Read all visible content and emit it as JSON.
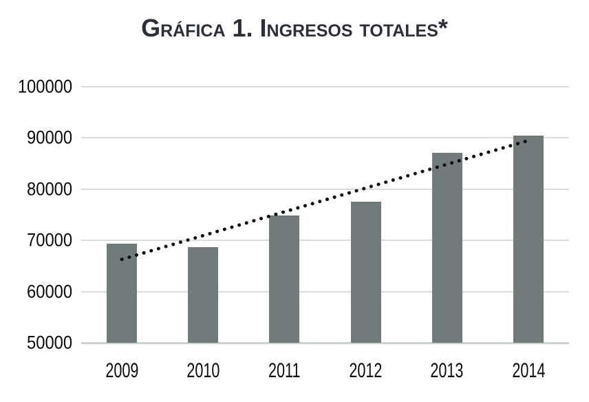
{
  "chart_data": {
    "type": "bar",
    "title": "Gráfica 1. Ingresos totales*",
    "categories": [
      "2009",
      "2010",
      "2011",
      "2012",
      "2013",
      "2014"
    ],
    "values": [
      69300,
      68700,
      74900,
      77600,
      87100,
      90400
    ],
    "xlabel": "",
    "ylabel": "",
    "ylim": [
      50000,
      100000
    ],
    "yticks": [
      100000,
      90000,
      80000,
      70000,
      60000,
      50000
    ],
    "ytick_step": 10000,
    "grid": true,
    "legend": "none",
    "trendline": {
      "style": "dotted",
      "start_category": "2009",
      "end_category": "2014",
      "start_value": 66300,
      "end_value": 89500
    },
    "colors": {
      "bar": "#727b7b",
      "grid": "#d8dcda",
      "baseline": "#ccd4d2",
      "title": "#2b3038",
      "tick_text": "#0b0b0b",
      "trend": "#0d0d0d"
    }
  }
}
